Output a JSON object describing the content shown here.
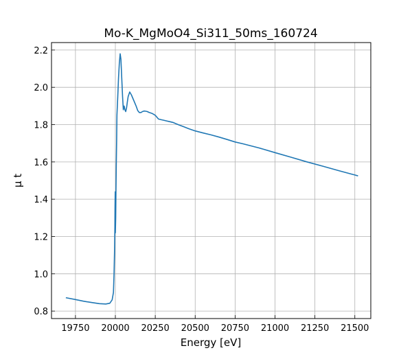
{
  "chart_data": {
    "type": "line",
    "title": "Mo-K_MgMoO4_Si311_50ms_160724",
    "xlabel": "Energy [eV]",
    "ylabel": "μ t",
    "xlim": [
      19600,
      21600
    ],
    "ylim": [
      0.76,
      2.24
    ],
    "xticks": [
      19750,
      20000,
      20250,
      20500,
      20750,
      21000,
      21250,
      21500
    ],
    "yticks": [
      0.8,
      1.0,
      1.2,
      1.4,
      1.6,
      1.8,
      2.0,
      2.2
    ],
    "xtick_labels": [
      "19750",
      "20000",
      "20250",
      "20500",
      "20750",
      "21000",
      "21250",
      "21500"
    ],
    "ytick_labels": [
      "0.8",
      "1.0",
      "1.2",
      "1.4",
      "1.6",
      "1.8",
      "2.0",
      "2.2"
    ],
    "grid": true,
    "colors": {
      "line": "#1f77b4"
    },
    "series": [
      {
        "x": [
          19690,
          19750,
          19800,
          19850,
          19900,
          19940,
          19965,
          19980,
          19988,
          19992,
          19995,
          19997,
          19998,
          19999,
          20000,
          20002,
          20004,
          20006,
          20008,
          20010,
          20015,
          20020,
          20025,
          20030,
          20035,
          20040,
          20045,
          20050,
          20055,
          20060,
          20065,
          20070,
          20075,
          20080,
          20090,
          20100,
          20110,
          20120,
          20130,
          20140,
          20150,
          20160,
          20170,
          20180,
          20190,
          20200,
          20210,
          20230,
          20250,
          20270,
          20290,
          20300,
          20320,
          20340,
          20360,
          20380,
          20400,
          20430,
          20460,
          20500,
          20550,
          20600,
          20650,
          20700,
          20750,
          20800,
          20900,
          21000,
          21100,
          21200,
          21300,
          21400,
          21500,
          21520
        ],
        "y": [
          0.872,
          0.862,
          0.853,
          0.846,
          0.84,
          0.838,
          0.842,
          0.86,
          0.9,
          1.0,
          1.12,
          1.25,
          1.35,
          1.44,
          1.22,
          1.3,
          1.45,
          1.6,
          1.72,
          1.85,
          1.95,
          2.05,
          2.13,
          2.18,
          2.15,
          2.05,
          1.95,
          1.88,
          1.9,
          1.88,
          1.87,
          1.89,
          1.92,
          1.95,
          1.975,
          1.96,
          1.94,
          1.92,
          1.9,
          1.875,
          1.865,
          1.865,
          1.87,
          1.873,
          1.872,
          1.87,
          1.866,
          1.86,
          1.85,
          1.83,
          1.826,
          1.824,
          1.82,
          1.816,
          1.812,
          1.805,
          1.798,
          1.788,
          1.778,
          1.766,
          1.755,
          1.745,
          1.733,
          1.72,
          1.707,
          1.697,
          1.675,
          1.65,
          1.625,
          1.6,
          1.577,
          1.553,
          1.53,
          1.525
        ]
      }
    ]
  }
}
